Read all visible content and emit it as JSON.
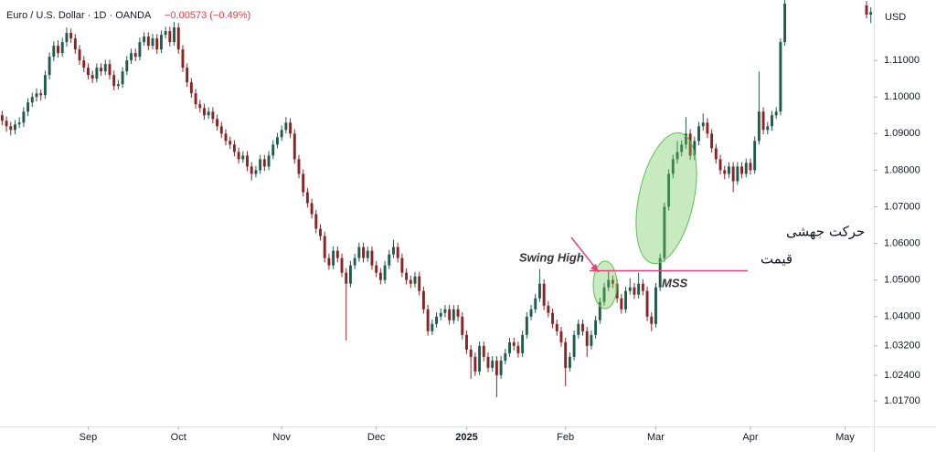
{
  "chart_data": {
    "type": "candlestick",
    "title": "Euro / U.S. Dollar · 1D · OANDA",
    "change": "−0.00573 (−0.49%)",
    "currency": "USD",
    "annotations": {
      "swing_high": "Swing High",
      "mss": "MSS",
      "move_line1": "حرکت جهشی",
      "move_line2": "قیمت"
    },
    "up_color": "#1f5c4c",
    "down_color": "#8a2424",
    "ylim": [
      1.01,
      1.1265
    ],
    "yticks": [
      {
        "value": 1.11,
        "label": "1.11000"
      },
      {
        "value": 1.1,
        "label": "1.10000"
      },
      {
        "value": 1.09,
        "label": "1.09000"
      },
      {
        "value": 1.08,
        "label": "1.08000"
      },
      {
        "value": 1.07,
        "label": "1.07000"
      },
      {
        "value": 1.06,
        "label": "1.06000"
      },
      {
        "value": 1.05,
        "label": "1.05000"
      },
      {
        "value": 1.04,
        "label": "1.04000"
      },
      {
        "value": 1.032,
        "label": "1.03200"
      },
      {
        "value": 1.024,
        "label": "1.02400"
      },
      {
        "value": 1.017,
        "label": "1.01700"
      }
    ],
    "xlim": [
      -0.5,
      202.7
    ],
    "xticks": [
      {
        "value": 20,
        "label": "Sep"
      },
      {
        "value": 41,
        "label": "Oct"
      },
      {
        "value": 65,
        "label": "Nov"
      },
      {
        "value": 87,
        "label": "Dec"
      },
      {
        "value": 108,
        "label": "2025"
      },
      {
        "value": 131,
        "label": "Feb"
      },
      {
        "value": 152,
        "label": "Mar"
      },
      {
        "value": 174,
        "label": "Apr"
      },
      {
        "value": 196,
        "label": "May"
      }
    ],
    "candles": [
      [
        1.095,
        1.0962,
        1.0923,
        1.0935
      ],
      [
        1.0935,
        1.0947,
        1.0905,
        1.092
      ],
      [
        1.092,
        1.0932,
        1.0895,
        1.091
      ],
      [
        1.091,
        1.0937,
        1.0898,
        1.0925
      ],
      [
        1.0925,
        1.0945,
        1.0915,
        1.093
      ],
      [
        1.093,
        1.0972,
        1.0918,
        1.096
      ],
      [
        1.096,
        1.0997,
        1.0948,
        1.0985
      ],
      [
        1.0985,
        1.1012,
        1.0973,
        1.1
      ],
      [
        1.1,
        1.1024,
        1.0988,
        1.101
      ],
      [
        1.101,
        1.102,
        1.099,
        1.1005
      ],
      [
        1.1005,
        1.1072,
        1.0995,
        1.106
      ],
      [
        1.106,
        1.1122,
        1.1048,
        1.111
      ],
      [
        1.111,
        1.1152,
        1.1098,
        1.114
      ],
      [
        1.114,
        1.1155,
        1.1108,
        1.112
      ],
      [
        1.112,
        1.1162,
        1.111,
        1.115
      ],
      [
        1.115,
        1.119,
        1.1138,
        1.1175
      ],
      [
        1.1175,
        1.1187,
        1.1148,
        1.116
      ],
      [
        1.116,
        1.1172,
        1.1118,
        1.113
      ],
      [
        1.113,
        1.1142,
        1.1088,
        1.11
      ],
      [
        1.11,
        1.1112,
        1.1068,
        1.108
      ],
      [
        1.108,
        1.1092,
        1.1048,
        1.106
      ],
      [
        1.106,
        1.1072,
        1.1038,
        1.105
      ],
      [
        1.105,
        1.1092,
        1.104,
        1.108
      ],
      [
        1.108,
        1.1092,
        1.1058,
        1.107
      ],
      [
        1.107,
        1.1102,
        1.106,
        1.109
      ],
      [
        1.109,
        1.1102,
        1.1048,
        1.106
      ],
      [
        1.106,
        1.1072,
        1.1018,
        1.103
      ],
      [
        1.103,
        1.1047,
        1.102,
        1.1035
      ],
      [
        1.1035,
        1.1082,
        1.1025,
        1.107
      ],
      [
        1.107,
        1.1112,
        1.106,
        1.11
      ],
      [
        1.11,
        1.1132,
        1.109,
        1.112
      ],
      [
        1.112,
        1.1132,
        1.1098,
        1.111
      ],
      [
        1.111,
        1.1162,
        1.11,
        1.115
      ],
      [
        1.115,
        1.1177,
        1.114,
        1.1165
      ],
      [
        1.1165,
        1.1177,
        1.1128,
        1.114
      ],
      [
        1.114,
        1.1172,
        1.113,
        1.116
      ],
      [
        1.116,
        1.1172,
        1.1118,
        1.113
      ],
      [
        1.113,
        1.1182,
        1.112,
        1.117
      ],
      [
        1.117,
        1.1192,
        1.116,
        1.118
      ],
      [
        1.118,
        1.1192,
        1.1138,
        1.115
      ],
      [
        1.115,
        1.1205,
        1.114,
        1.119
      ],
      [
        1.119,
        1.1202,
        1.1118,
        1.113
      ],
      [
        1.113,
        1.1142,
        1.1068,
        1.108
      ],
      [
        1.108,
        1.1092,
        1.1028,
        1.104
      ],
      [
        1.104,
        1.1052,
        1.0998,
        1.101
      ],
      [
        1.101,
        1.1022,
        1.0968,
        1.098
      ],
      [
        1.098,
        1.0992,
        1.0958,
        1.097
      ],
      [
        1.097,
        1.0982,
        1.0938,
        1.095
      ],
      [
        1.095,
        1.0972,
        1.094,
        1.096
      ],
      [
        1.096,
        1.0972,
        1.0928,
        1.094
      ],
      [
        1.094,
        1.0952,
        1.0908,
        1.092
      ],
      [
        1.092,
        1.0932,
        1.0888,
        1.09
      ],
      [
        1.09,
        1.0912,
        1.0868,
        1.088
      ],
      [
        1.088,
        1.0892,
        1.0858,
        1.087
      ],
      [
        1.087,
        1.0882,
        1.0838,
        1.085
      ],
      [
        1.085,
        1.0862,
        1.0818,
        1.083
      ],
      [
        1.083,
        1.0852,
        1.082,
        1.084
      ],
      [
        1.084,
        1.0852,
        1.0798,
        1.081
      ],
      [
        1.081,
        1.0822,
        1.0772,
        1.079
      ],
      [
        1.079,
        1.0812,
        1.078,
        1.08
      ],
      [
        1.08,
        1.0842,
        1.079,
        1.083
      ],
      [
        1.083,
        1.0842,
        1.0798,
        1.081
      ],
      [
        1.081,
        1.0852,
        1.08,
        1.084
      ],
      [
        1.084,
        1.0882,
        1.083,
        1.087
      ],
      [
        1.087,
        1.0902,
        1.086,
        1.089
      ],
      [
        1.089,
        1.0922,
        1.088,
        1.091
      ],
      [
        1.091,
        1.0945,
        1.09,
        1.093
      ],
      [
        1.093,
        1.0942,
        1.0888,
        1.09
      ],
      [
        1.09,
        1.0912,
        1.0818,
        1.083
      ],
      [
        1.083,
        1.0842,
        1.0778,
        1.079
      ],
      [
        1.079,
        1.0802,
        1.0728,
        1.074
      ],
      [
        1.074,
        1.0752,
        1.0698,
        1.071
      ],
      [
        1.071,
        1.0722,
        1.0668,
        1.068
      ],
      [
        1.068,
        1.0692,
        1.0628,
        1.064
      ],
      [
        1.064,
        1.0652,
        1.0608,
        1.062
      ],
      [
        1.062,
        1.0632,
        1.0548,
        1.056
      ],
      [
        1.056,
        1.0572,
        1.0528,
        1.054
      ],
      [
        1.054,
        1.0592,
        1.053,
        1.058
      ],
      [
        1.058,
        1.0592,
        1.0548,
        1.056
      ],
      [
        1.056,
        1.0572,
        1.0508,
        1.052
      ],
      [
        1.052,
        1.0532,
        1.0335,
        1.049
      ],
      [
        1.049,
        1.0552,
        1.048,
        1.054
      ],
      [
        1.054,
        1.0572,
        1.053,
        1.056
      ],
      [
        1.056,
        1.0602,
        1.055,
        1.059
      ],
      [
        1.059,
        1.0602,
        1.0548,
        1.056
      ],
      [
        1.056,
        1.0592,
        1.055,
        1.058
      ],
      [
        1.058,
        1.0592,
        1.0528,
        1.054
      ],
      [
        1.054,
        1.0552,
        1.0508,
        1.052
      ],
      [
        1.052,
        1.0532,
        1.0488,
        1.05
      ],
      [
        1.05,
        1.0552,
        1.049,
        1.054
      ],
      [
        1.054,
        1.0582,
        1.053,
        1.057
      ],
      [
        1.057,
        1.061,
        1.056,
        1.059
      ],
      [
        1.059,
        1.0602,
        1.0548,
        1.056
      ],
      [
        1.056,
        1.0572,
        1.0508,
        1.052
      ],
      [
        1.052,
        1.0532,
        1.0488,
        1.05
      ],
      [
        1.05,
        1.0512,
        1.0478,
        1.049
      ],
      [
        1.049,
        1.0522,
        1.048,
        1.051
      ],
      [
        1.051,
        1.0522,
        1.0458,
        1.047
      ],
      [
        1.047,
        1.0482,
        1.0408,
        1.042
      ],
      [
        1.042,
        1.0432,
        1.0348,
        1.036
      ],
      [
        1.036,
        1.0392,
        1.035,
        1.038
      ],
      [
        1.038,
        1.0412,
        1.037,
        1.04
      ],
      [
        1.04,
        1.0422,
        1.039,
        1.041
      ],
      [
        1.041,
        1.0432,
        1.0398,
        1.042
      ],
      [
        1.042,
        1.0432,
        1.0378,
        1.039
      ],
      [
        1.039,
        1.0432,
        1.038,
        1.042
      ],
      [
        1.042,
        1.0432,
        1.0388,
        1.04
      ],
      [
        1.04,
        1.0412,
        1.0338,
        1.035
      ],
      [
        1.035,
        1.0362,
        1.0298,
        1.031
      ],
      [
        1.031,
        1.0322,
        1.023,
        1.029
      ],
      [
        1.029,
        1.0302,
        1.0238,
        1.025
      ],
      [
        1.025,
        1.0332,
        1.024,
        1.032
      ],
      [
        1.032,
        1.0332,
        1.0278,
        1.029
      ],
      [
        1.029,
        1.0302,
        1.0248,
        1.026
      ],
      [
        1.026,
        1.0292,
        1.025,
        1.028
      ],
      [
        1.028,
        1.0292,
        1.018,
        1.024
      ],
      [
        1.024,
        1.0292,
        1.023,
        1.028
      ],
      [
        1.028,
        1.0312,
        1.027,
        1.03
      ],
      [
        1.03,
        1.0342,
        1.029,
        1.033
      ],
      [
        1.033,
        1.0342,
        1.0308,
        1.032
      ],
      [
        1.032,
        1.0332,
        1.0288,
        1.03
      ],
      [
        1.03,
        1.0362,
        1.029,
        1.035
      ],
      [
        1.035,
        1.0412,
        1.034,
        1.04
      ],
      [
        1.04,
        1.0432,
        1.039,
        1.042
      ],
      [
        1.042,
        1.0462,
        1.041,
        1.045
      ],
      [
        1.045,
        1.053,
        1.044,
        1.049
      ],
      [
        1.049,
        1.0502,
        1.0418,
        1.043
      ],
      [
        1.043,
        1.0442,
        1.0398,
        1.041
      ],
      [
        1.041,
        1.0422,
        1.0368,
        1.038
      ],
      [
        1.038,
        1.0392,
        1.0348,
        1.036
      ],
      [
        1.036,
        1.0372,
        1.0318,
        1.033
      ],
      [
        1.033,
        1.0342,
        1.021,
        1.026
      ],
      [
        1.026,
        1.0302,
        1.025,
        1.029
      ],
      [
        1.029,
        1.0362,
        1.028,
        1.035
      ],
      [
        1.035,
        1.0392,
        1.034,
        1.038
      ],
      [
        1.038,
        1.0392,
        1.0348,
        1.036
      ],
      [
        1.036,
        1.0372,
        1.029,
        1.032
      ],
      [
        1.032,
        1.0362,
        1.031,
        1.035
      ],
      [
        1.035,
        1.0402,
        1.034,
        1.039
      ],
      [
        1.039,
        1.0452,
        1.038,
        1.044
      ],
      [
        1.044,
        1.0492,
        1.043,
        1.048
      ],
      [
        1.048,
        1.0525,
        1.047,
        1.05
      ],
      [
        1.05,
        1.0512,
        1.0478,
        1.049
      ],
      [
        1.049,
        1.0502,
        1.0438,
        1.045
      ],
      [
        1.045,
        1.0462,
        1.0408,
        1.042
      ],
      [
        1.042,
        1.0482,
        1.041,
        1.047
      ],
      [
        1.047,
        1.0505,
        1.046,
        1.048
      ],
      [
        1.048,
        1.0492,
        1.0448,
        1.046
      ],
      [
        1.046,
        1.052,
        1.045,
        1.049
      ],
      [
        1.049,
        1.0502,
        1.0458,
        1.047
      ],
      [
        1.047,
        1.0482,
        1.0388,
        1.04
      ],
      [
        1.04,
        1.0412,
        1.036,
        1.038
      ],
      [
        1.038,
        1.0492,
        1.037,
        1.048
      ],
      [
        1.048,
        1.0572,
        1.047,
        1.056
      ],
      [
        1.056,
        1.0712,
        1.055,
        1.07
      ],
      [
        1.07,
        1.0802,
        1.069,
        1.079
      ],
      [
        1.079,
        1.0842,
        1.0778,
        1.083
      ],
      [
        1.083,
        1.088,
        1.0818,
        1.085
      ],
      [
        1.085,
        1.0882,
        1.0838,
        1.087
      ],
      [
        1.087,
        1.0945,
        1.0858,
        1.09
      ],
      [
        1.09,
        1.0912,
        1.0828,
        1.084
      ],
      [
        1.084,
        1.0892,
        1.0828,
        1.088
      ],
      [
        1.088,
        1.0932,
        1.0868,
        1.092
      ],
      [
        1.092,
        1.0955,
        1.0908,
        1.093
      ],
      [
        1.093,
        1.0942,
        1.0888,
        1.09
      ],
      [
        1.09,
        1.0912,
        1.0848,
        1.086
      ],
      [
        1.086,
        1.0872,
        1.0818,
        1.083
      ],
      [
        1.083,
        1.0842,
        1.0788,
        1.08
      ],
      [
        1.08,
        1.0812,
        1.0775,
        1.079
      ],
      [
        1.079,
        1.0822,
        1.0778,
        1.081
      ],
      [
        1.081,
        1.0822,
        1.074,
        1.077
      ],
      [
        1.077,
        1.0822,
        1.076,
        1.081
      ],
      [
        1.081,
        1.0822,
        1.0778,
        1.079
      ],
      [
        1.079,
        1.0832,
        1.078,
        1.082
      ],
      [
        1.082,
        1.0832,
        1.0788,
        1.08
      ],
      [
        1.08,
        1.0892,
        1.079,
        1.088
      ],
      [
        1.088,
        1.107,
        1.087,
        1.096
      ],
      [
        1.096,
        1.0972,
        1.0898,
        1.091
      ],
      [
        1.091,
        1.0932,
        1.0898,
        1.092
      ],
      [
        1.092,
        1.0962,
        1.0908,
        1.095
      ],
      [
        1.095,
        1.0972,
        1.094,
        1.096
      ],
      [
        1.096,
        1.116,
        1.095,
        1.115
      ],
      [
        1.115,
        1.1265,
        1.114,
        1.1255
      ],
      null,
      null,
      null,
      null,
      null,
      null,
      null,
      null,
      null,
      null,
      null,
      null,
      null,
      null,
      null,
      null,
      null,
      null,
      [
        1.125,
        1.1262,
        1.1215,
        1.1225
      ],
      [
        1.1225,
        1.1245,
        1.1202,
        1.1232
      ]
    ]
  }
}
